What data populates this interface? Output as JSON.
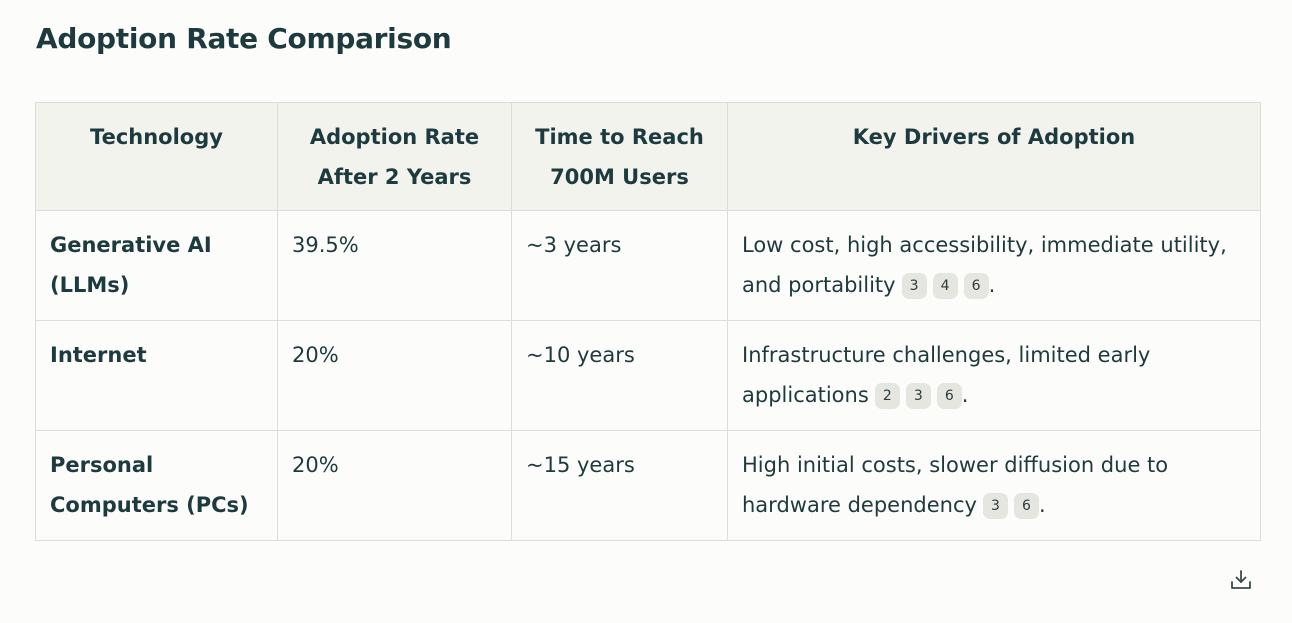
{
  "title": "Adoption Rate Comparison",
  "table": {
    "headers": [
      "Technology",
      "Adoption Rate After 2 Years",
      "Time to Reach 700M Users",
      "Key Drivers of Adoption"
    ],
    "rows": [
      {
        "technology": "Generative AI (LLMs)",
        "adoption_rate": "39.5%",
        "time_to_700m": "~3 years",
        "drivers": "Low cost, high accessibility, immediate utility, and portability",
        "citations": [
          "3",
          "4",
          "6"
        ],
        "end": "."
      },
      {
        "technology": "Internet",
        "adoption_rate": "20%",
        "time_to_700m": "~10 years",
        "drivers": "Infrastructure challenges, limited early applications",
        "citations": [
          "2",
          "3",
          "6"
        ],
        "end": "."
      },
      {
        "technology": "Personal Computers (PCs)",
        "adoption_rate": "20%",
        "time_to_700m": "~15 years",
        "drivers": "High initial costs, slower diffusion due to hardware dependency",
        "citations": [
          "3",
          "6"
        ],
        "end": "."
      }
    ]
  },
  "toolbar": {
    "download_icon": "download-icon"
  }
}
